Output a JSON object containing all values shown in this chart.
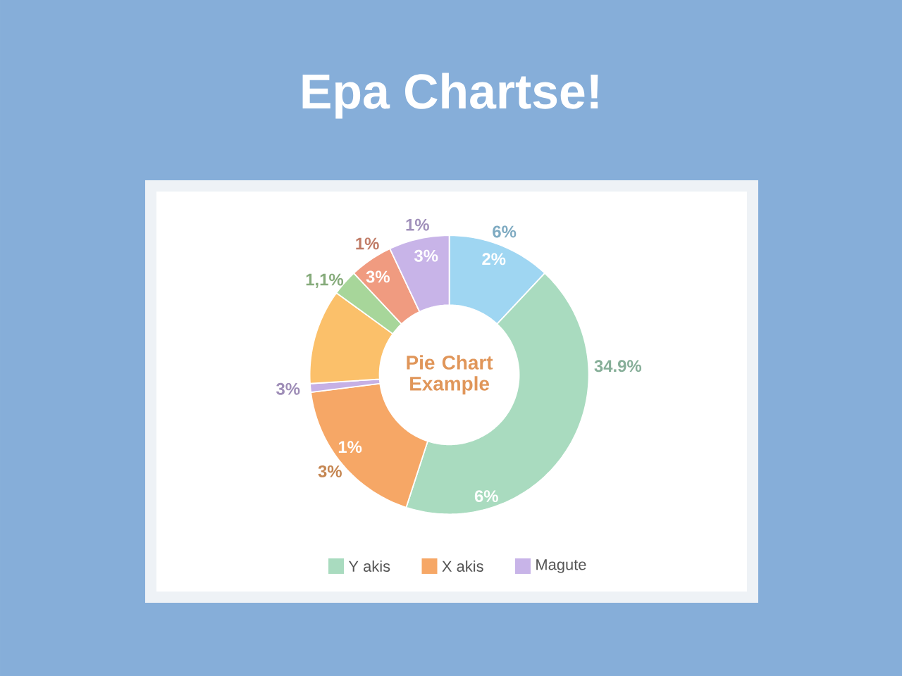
{
  "chart_data": {
    "type": "donut",
    "title": "Epa Chartse!",
    "subtitle": "Pie Chart Example",
    "categories": [
      null,
      "Y akis",
      "X akis",
      null,
      null,
      null,
      null,
      "Magute"
    ],
    "values": [
      12,
      43,
      18,
      1,
      11,
      3,
      5,
      7
    ],
    "colors": [
      "#9fd6f2",
      "#a9dbbf",
      "#f6a766",
      "#c6b0e5",
      "#fbc06a",
      "#a7d69a",
      "#f09b80",
      "#c8b4e8"
    ],
    "annotations": [
      "6%",
      "2%",
      "34.9%",
      "6%",
      "1%",
      "3%",
      "3%",
      "1,1%",
      "1%",
      "3%",
      "1%",
      "3%"
    ],
    "legend": "bottom"
  }
}
